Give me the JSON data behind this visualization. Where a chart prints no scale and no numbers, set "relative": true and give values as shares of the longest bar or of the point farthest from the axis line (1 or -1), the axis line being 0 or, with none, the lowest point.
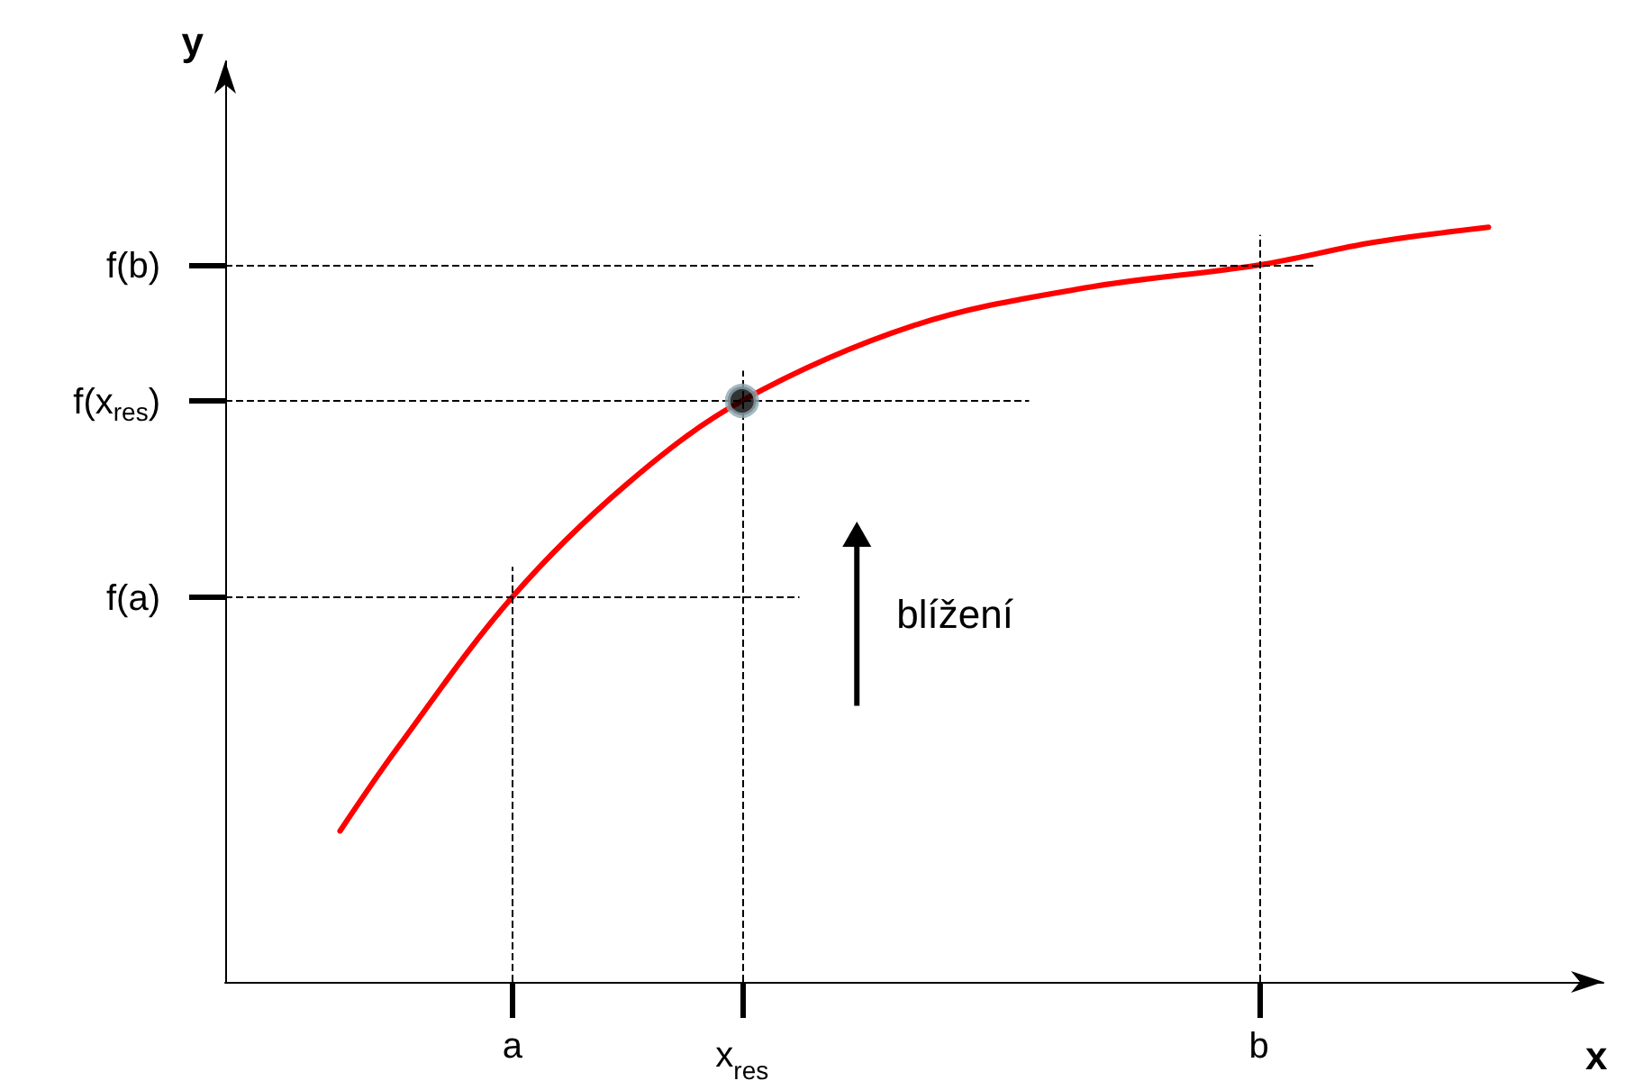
{
  "chart_data": {
    "type": "line",
    "xlabel": "x",
    "ylabel": "y",
    "relative": true,
    "annotations": [
      "blížení"
    ],
    "categories": [
      null,
      null,
      null,
      null,
      null,
      "a",
      null,
      null,
      null,
      "x$_{res}$",
      null,
      null,
      null,
      null,
      null,
      null,
      null,
      null,
      "b",
      null,
      null,
      null,
      null,
      null,
      null
    ],
    "series": [
      {
        "color": "#ff0000",
        "marker": "none",
        "values": [
          null,
          null,
          0.2,
          0.31,
          null,
          0.51,
          null,
          0.66,
          null,
          0.77,
          null,
          null,
          0.87,
          null,
          null,
          0.92,
          null,
          null,
          0.95,
          null,
          0.98,
          null,
          1,
          null,
          null
        ]
      },
      {
        "type": "scatter",
        "marker": "circle",
        "color": "#000000",
        "x": [
          "x$_{res}$"
        ],
        "values": [
          0.77
        ]
      }
    ],
    "ref_lines": [
      {
        "axis": "x",
        "value": "a",
        "line_style": "dashed"
      },
      {
        "axis": "x",
        "value": "x$_{res}$",
        "line_style": "dashed"
      },
      {
        "axis": "x",
        "value": "b",
        "line_style": "dashed"
      },
      {
        "axis": "y",
        "value": 0.51,
        "label": "f(a)",
        "line_style": "dashed"
      },
      {
        "axis": "y",
        "value": 0.77,
        "label": "f(x$_{res}$)",
        "line_style": "dashed"
      },
      {
        "axis": "y",
        "value": 0.95,
        "label": "f(b)",
        "line_style": "dashed"
      }
    ],
    "line_style": "solid"
  }
}
